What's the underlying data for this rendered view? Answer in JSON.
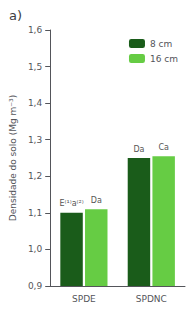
{
  "chart_data": {
    "type": "bar",
    "title": "a)",
    "ylabel": "Densidade do solo (Mg m⁻³)",
    "categories": [
      "SPDE",
      "SPDNC"
    ],
    "series": [
      {
        "name": "8 cm",
        "color": "#1a5c1a",
        "values": [
          1.1,
          1.25
        ],
        "annotations": [
          "E⁽¹⁾a⁽²⁾",
          "Da"
        ]
      },
      {
        "name": "16 cm",
        "color": "#66cc44",
        "values": [
          1.11,
          1.255
        ],
        "annotations": [
          "Da",
          "Ca"
        ]
      }
    ],
    "ylim": [
      0.9,
      1.6
    ],
    "yticks": [
      {
        "value": 0.9,
        "label": "0,9"
      },
      {
        "value": 1.0,
        "label": "1,0"
      },
      {
        "value": 1.1,
        "label": "1,1"
      },
      {
        "value": 1.2,
        "label": "1,2"
      },
      {
        "value": 1.3,
        "label": "1,3"
      },
      {
        "value": 1.4,
        "label": "1,4"
      },
      {
        "value": 1.5,
        "label": "1,5"
      },
      {
        "value": 1.6,
        "label": "1,6"
      }
    ],
    "grid": false,
    "legend": "upper right"
  }
}
